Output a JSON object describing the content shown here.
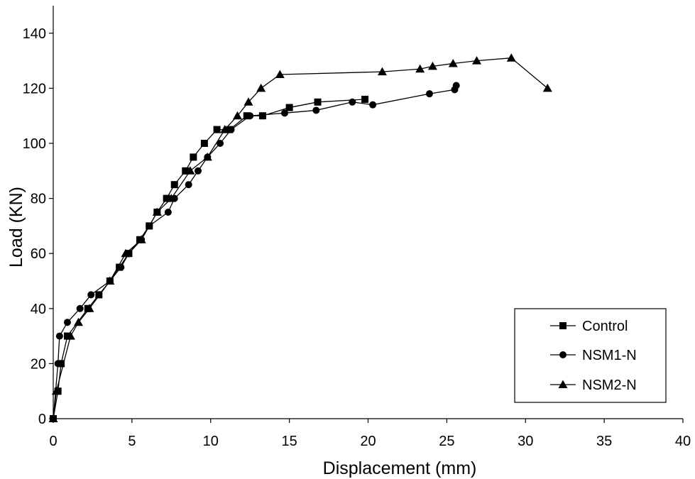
{
  "chart_data": {
    "type": "line",
    "title": "",
    "xlabel": "Displacement (mm)",
    "ylabel": "Load (KN)",
    "xlim": [
      0,
      40
    ],
    "ylim": [
      0,
      150
    ],
    "xticks": [
      0,
      5,
      10,
      15,
      20,
      25,
      30,
      35,
      40
    ],
    "yticks": [
      0,
      20,
      40,
      60,
      80,
      100,
      120,
      140
    ],
    "grid": false,
    "legend_position": "bottom-right",
    "series": [
      {
        "name": "Control",
        "marker": "square",
        "color": "#000000",
        "x": [
          0.0,
          0.3,
          0.5,
          0.9,
          2.2,
          2.9,
          3.6,
          4.2,
          4.8,
          5.5,
          6.1,
          6.6,
          7.2,
          7.7,
          8.4,
          8.9,
          9.6,
          10.4,
          11.2,
          12.3,
          13.3,
          15.0,
          16.8,
          19.8
        ],
        "y": [
          0,
          10,
          20,
          30,
          40,
          45,
          50,
          55,
          60,
          65,
          70,
          75,
          80,
          85,
          90,
          95,
          100,
          105,
          105,
          110,
          110,
          113,
          115,
          116
        ]
      },
      {
        "name": "NSM1-N",
        "marker": "circle",
        "color": "#000000",
        "x": [
          0.0,
          0.3,
          0.4,
          0.9,
          1.7,
          2.4,
          3.6,
          4.3,
          4.8,
          5.6,
          6.1,
          7.3,
          7.7,
          8.6,
          9.2,
          9.8,
          10.6,
          11.3,
          12.5,
          14.7,
          16.7,
          19.0,
          20.3,
          23.9,
          25.5,
          25.6
        ],
        "y": [
          0,
          20,
          30,
          35,
          40,
          45,
          50,
          55,
          60,
          65,
          70,
          75,
          80,
          85,
          90,
          95,
          100,
          105,
          110,
          111,
          112,
          115,
          114,
          118,
          119.5,
          121
        ]
      },
      {
        "name": "NSM2-N",
        "marker": "triangle",
        "color": "#000000",
        "x": [
          0.0,
          0.2,
          1.1,
          1.6,
          2.3,
          3.6,
          4.6,
          5.6,
          6.6,
          7.5,
          8.7,
          9.8,
          10.9,
          11.7,
          12.4,
          13.2,
          14.4,
          20.9,
          23.3,
          24.1,
          25.4,
          26.9,
          29.1,
          31.4
        ],
        "y": [
          0,
          10,
          30,
          35,
          40,
          50,
          60,
          65,
          75,
          80,
          90,
          95,
          105,
          110,
          115,
          120,
          125,
          126,
          127,
          128,
          129,
          130,
          131,
          120
        ]
      }
    ]
  }
}
